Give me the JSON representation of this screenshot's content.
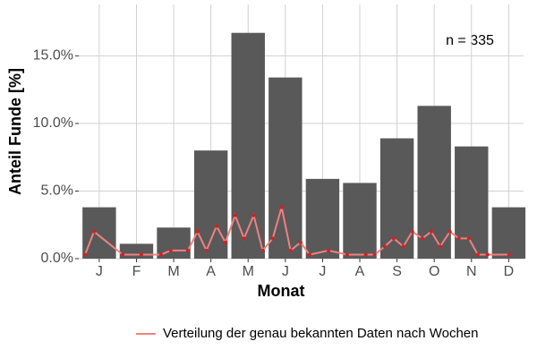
{
  "chart_data": {
    "type": "bar",
    "categories": [
      "J",
      "F",
      "M",
      "A",
      "M",
      "J",
      "J",
      "A",
      "S",
      "O",
      "N",
      "D"
    ],
    "values": [
      3.8,
      1.1,
      2.3,
      8.0,
      16.7,
      13.4,
      5.9,
      5.6,
      8.9,
      11.3,
      8.3,
      3.8
    ],
    "color": "#595959",
    "xlabel": "Monat",
    "ylabel": "Anteil Funde [%]",
    "annotation": "n = 335",
    "ylim": [
      0,
      18.8
    ],
    "xlim": [
      0.45,
      12.4
    ],
    "yticks": [
      {
        "value": 0,
        "label": "0.0%"
      },
      {
        "value": 5,
        "label": "5.0%"
      },
      {
        "value": 10,
        "label": "10.0%"
      },
      {
        "value": 15,
        "label": "15.0%"
      }
    ],
    "grid": true,
    "legend": "bottom",
    "line": {
      "name": "Verteilung der genau bekannten Daten nach Wochen",
      "color": "#f08080",
      "point_color": "#d42020",
      "x": [
        0.62,
        0.86,
        1.63,
        2.13,
        2.66,
        2.92,
        3.38,
        3.64,
        3.88,
        4.15,
        4.39,
        4.65,
        4.89,
        5.15,
        5.39,
        5.66,
        5.9,
        6.14,
        6.41,
        6.65,
        7.16,
        7.66,
        8.16,
        8.4,
        8.67,
        8.91,
        9.17,
        9.41,
        9.68,
        9.92,
        10.16,
        10.42,
        10.66,
        10.93,
        11.17,
        11.43,
        12.01
      ],
      "values": [
        0.3,
        2.0,
        0.3,
        0.3,
        0.3,
        0.6,
        0.6,
        2.0,
        0.6,
        2.4,
        1.2,
        3.2,
        1.5,
        3.2,
        0.6,
        1.5,
        3.8,
        0.6,
        1.2,
        0.3,
        0.6,
        0.3,
        0.3,
        0.3,
        0.9,
        1.5,
        0.9,
        2.0,
        1.5,
        2.0,
        0.9,
        2.0,
        1.5,
        1.5,
        0.3,
        0.3,
        0.3
      ]
    }
  }
}
